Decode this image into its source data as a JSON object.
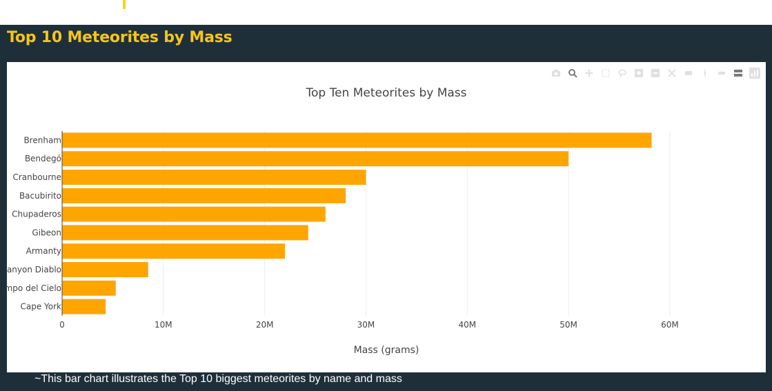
{
  "page": {
    "title": "Top 10 Meteorites by Mass",
    "caption": "~This bar chart illustrates the Top 10 biggest meteorites by name and mass"
  },
  "colors": {
    "panel": "#1f2f3a",
    "title": "#f5c518",
    "bar": "#ffa500",
    "accent_marker": "#f5d90a"
  },
  "modebar": {
    "icons": [
      "camera-icon",
      "zoom-icon",
      "pan-icon",
      "box-select-icon",
      "lasso-select-icon",
      "zoom-in-icon",
      "zoom-out-icon",
      "autoscale-icon",
      "reset-axes-icon",
      "spike-lines-icon",
      "hover-closest-icon",
      "hover-compare-icon",
      "plotly-logo-icon"
    ]
  },
  "chart_data": {
    "type": "bar",
    "orientation": "horizontal",
    "title": "Top Ten Meteorites by Mass",
    "xlabel": "Mass (grams)",
    "ylabel": "",
    "xlim": [
      0,
      66000000
    ],
    "grid": true,
    "legend": "none",
    "x_ticks": [
      {
        "value": 0,
        "label": "0"
      },
      {
        "value": 10000000,
        "label": "10M"
      },
      {
        "value": 20000000,
        "label": "20M"
      },
      {
        "value": 30000000,
        "label": "30M"
      },
      {
        "value": 40000000,
        "label": "40M"
      },
      {
        "value": 50000000,
        "label": "50M"
      },
      {
        "value": 60000000,
        "label": "60M"
      }
    ],
    "categories": [
      "Brenham",
      "Bendegó",
      "Cranbourne",
      "Bacubirito",
      "Chupaderos",
      "Gibeon",
      "Armanty",
      "Canyon Diablo",
      "Campo del Cielo",
      "Cape York"
    ],
    "values": [
      58200000,
      50000000,
      30000000,
      28000000,
      26000000,
      24300000,
      22000000,
      8500000,
      5300000,
      4300000
    ]
  }
}
